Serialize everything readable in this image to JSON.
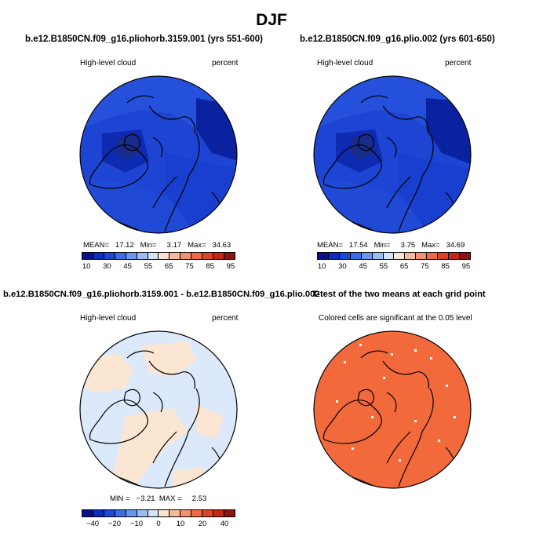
{
  "title": "DJF",
  "panels": [
    {
      "title": "b.e12.B1850CN.f09_g16.pliohorb.3159.001 (yrs 551-600)",
      "left_label": "High-level cloud",
      "right_label": "percent",
      "stats": "MEAN=   17.12   Min=     3.17   Max=   34.63",
      "colorbar_colors": [
        "#08108c",
        "#0a2cbf",
        "#1c48d8",
        "#3b6ee6",
        "#6b96ee",
        "#9ebcf4",
        "#d2e4fa",
        "#fbe3d2",
        "#f7b99a",
        "#f39270",
        "#ec6a46",
        "#dc4426",
        "#c0281a",
        "#8c1410"
      ],
      "colorbar_ticks": [
        "10",
        "30",
        "45",
        "55",
        "65",
        "75",
        "85",
        "95"
      ]
    },
    {
      "title": "b.e12.B1850CN.f09_g16.plio.002 (yrs 601-650)",
      "left_label": "High-level cloud",
      "right_label": "percent",
      "stats": "MEAN=   17.54   Min=     3.75   Max=   34.69",
      "colorbar_colors": [
        "#08108c",
        "#0a2cbf",
        "#1c48d8",
        "#3b6ee6",
        "#6b96ee",
        "#9ebcf4",
        "#d2e4fa",
        "#fbe3d2",
        "#f7b99a",
        "#f39270",
        "#ec6a46",
        "#dc4426",
        "#c0281a",
        "#8c1410"
      ],
      "colorbar_ticks": [
        "10",
        "30",
        "45",
        "55",
        "65",
        "75",
        "85",
        "95"
      ]
    },
    {
      "title": "b.e12.B1850CN.f09_g16.pliohorb.3159.001 - b.e12.B1850CN.f09_g16.plio.002",
      "left_label": "High-level cloud",
      "right_label": "percent",
      "stats": "MIN =   −3.21  MAX =     2.53",
      "colorbar_colors": [
        "#08108c",
        "#0a2cbf",
        "#1c48d8",
        "#3b6ee6",
        "#6b96ee",
        "#9ebcf4",
        "#d2e4fa",
        "#fbe3d2",
        "#f7b99a",
        "#f39270",
        "#ec6a46",
        "#dc4426",
        "#c0281a",
        "#8c1410"
      ],
      "colorbar_ticks": [
        "−40",
        "−20",
        "−10",
        "0",
        "10",
        "20",
        "40"
      ]
    },
    {
      "title": "T-test of the two means at each grid point",
      "left_label": "Colored cells are significant at the 0.05 level"
    }
  ],
  "colors": {
    "cloud_dark": "#1636c8",
    "cloud_darker": "#0b24a6",
    "cloud_mid": "#2a55df",
    "diff_light_blue": "#dbe9fb",
    "diff_light_orange": "#fbe6d3",
    "ttest_orange": "#f26a3c"
  }
}
